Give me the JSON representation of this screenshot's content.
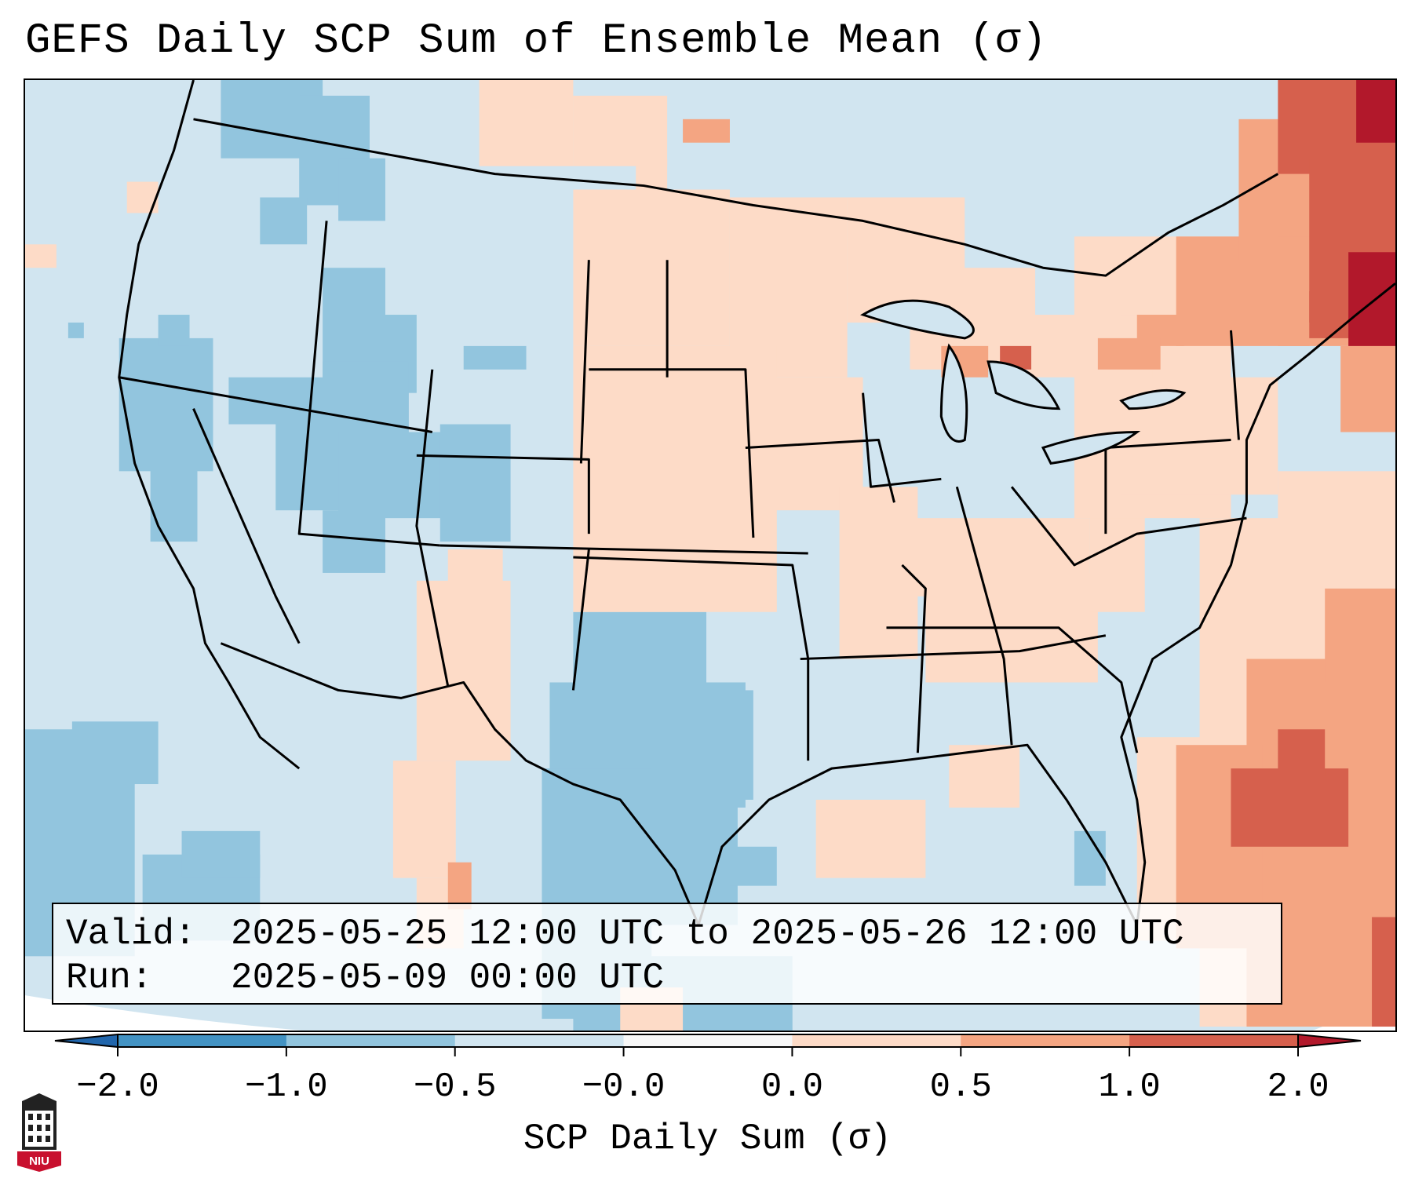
{
  "title": "GEFS Daily SCP Sum of Ensemble Mean (σ)",
  "info": {
    "valid_key": "Valid:",
    "valid_value": "2025-05-25 12:00 UTC to 2025-05-26 12:00 UTC",
    "run_key": "Run:",
    "run_value": "2025-05-09 00:00 UTC"
  },
  "colorbar": {
    "label": "SCP Daily Sum (σ)",
    "ticks": [
      "−2.0",
      "−1.0",
      "−0.5",
      "−0.0",
      "0.0",
      "0.5",
      "1.0",
      "2.0"
    ],
    "bins": [
      {
        "range": "< -2.0",
        "color": "#2166ac"
      },
      {
        "range": "-2.0 to -1.0",
        "color": "#4393c3"
      },
      {
        "range": "-1.0 to -0.5",
        "color": "#92c5de"
      },
      {
        "range": "-0.5 to -0.0",
        "color": "#d1e5f0"
      },
      {
        "range": "-0.0 to 0.0",
        "color": "#f7f7f7"
      },
      {
        "range": "0.0 to 0.5",
        "color": "#fddbc7"
      },
      {
        "range": "0.5 to 1.0",
        "color": "#f4a582"
      },
      {
        "range": "1.0 to 2.0",
        "color": "#d6604d"
      },
      {
        "range": "> 2.0",
        "color": "#b2182b"
      }
    ]
  },
  "map": {
    "region": "CONUS",
    "background_color": "#d1e5f0",
    "positive_anomaly_regions": [
      "New England",
      "Southeast Canada",
      "Western Atlantic",
      "Ohio Valley",
      "Southern Plains",
      "Upper Midwest"
    ],
    "negative_anomaly_regions": [
      "Great Basin",
      "Texas",
      "Pacific Northwest",
      "Eastern Pacific"
    ]
  },
  "logo": {
    "text": "NIU",
    "icon": "university-tower-icon",
    "color": "#c8102e"
  }
}
